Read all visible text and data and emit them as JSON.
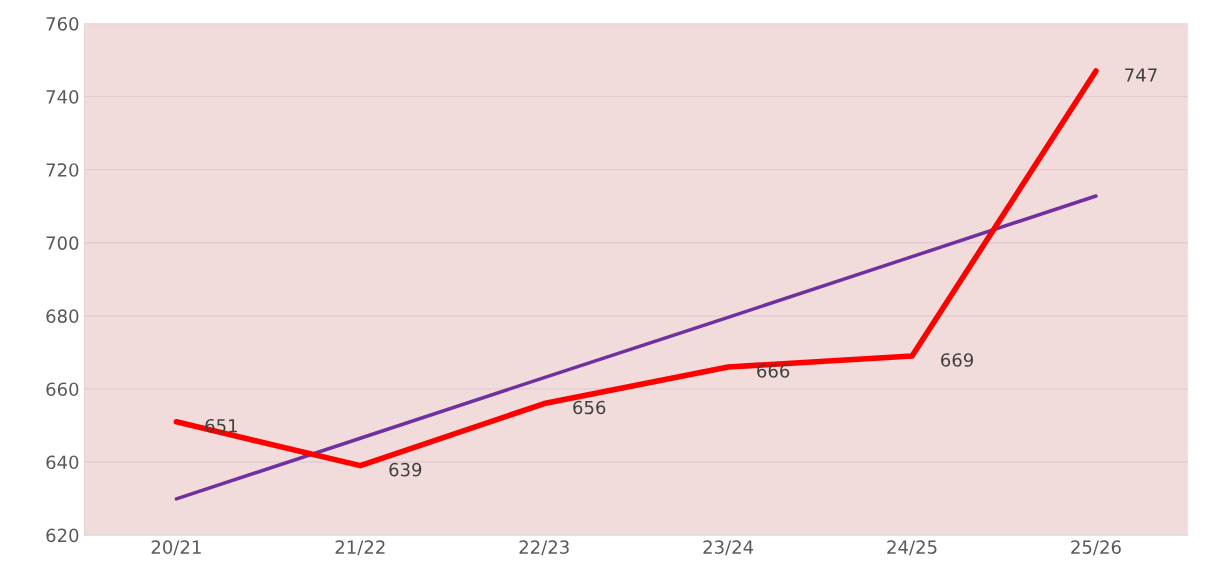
{
  "chart_data": {
    "type": "line",
    "categories": [
      "20/21",
      "21/22",
      "22/23",
      "23/24",
      "24/25",
      "25/26"
    ],
    "series": [
      {
        "color": "#ff0000",
        "values": [
          651,
          639,
          656,
          666,
          669,
          747
        ],
        "value_labels": [
          "651",
          "639",
          "656",
          "666",
          "669",
          "747"
        ]
      },
      {
        "color": "#7030a0",
        "values": [
          629.9,
          646.5,
          663.1,
          679.6,
          696.2,
          712.8
        ]
      }
    ],
    "ylim": [
      620,
      760
    ],
    "yticks": [
      620,
      640,
      660,
      680,
      700,
      720,
      740,
      760
    ],
    "grid": "y",
    "legend": false,
    "marker": "none",
    "line_style": "solid"
  }
}
